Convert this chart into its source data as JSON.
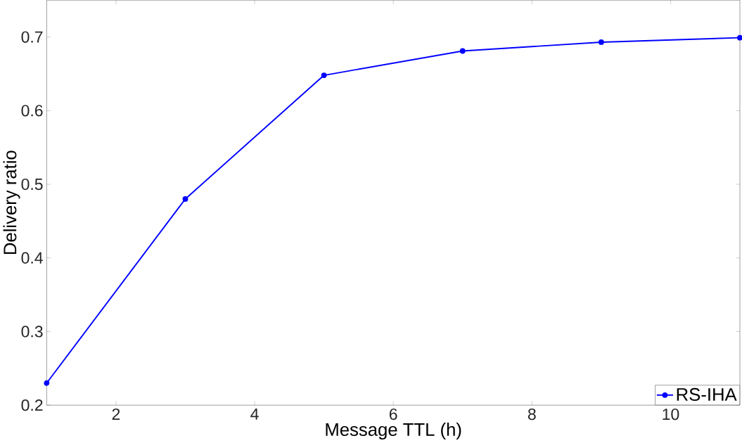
{
  "chart_data": {
    "type": "line",
    "xlabel": "Message TTL (h)",
    "ylabel": "Delivery ratio",
    "x": [
      1,
      3,
      5,
      7,
      9,
      11
    ],
    "series": [
      {
        "name": "RS-IHA",
        "color": "#0000ff",
        "values": [
          0.23,
          0.48,
          0.648,
          0.681,
          0.693,
          0.699
        ]
      }
    ],
    "xlim": [
      1,
      11
    ],
    "xticks": [
      2,
      4,
      6,
      8,
      10
    ],
    "ylim": [
      0.2,
      0.75
    ],
    "yticks": [
      0.2,
      0.3,
      0.4,
      0.5,
      0.6,
      0.7
    ],
    "grid": false,
    "legend": "bottom right",
    "marker": "circle",
    "line_style": "solid"
  }
}
